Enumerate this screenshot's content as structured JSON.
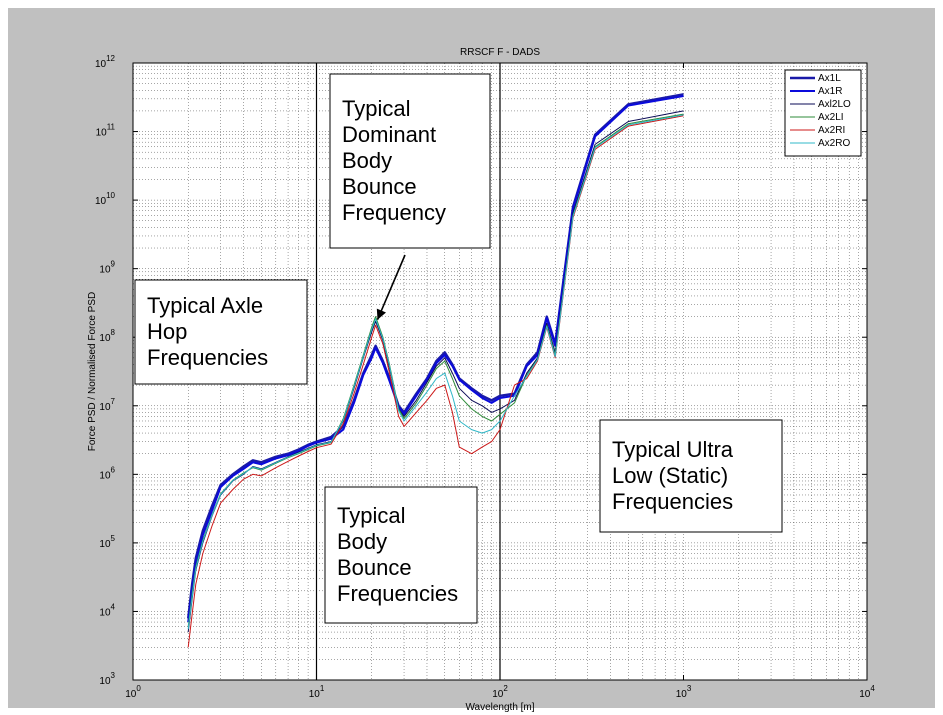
{
  "chart_data": {
    "type": "line",
    "title": "RRSCF F - DADS",
    "xlabel": "Wavelength [m]",
    "ylabel": "Force PSD / Normalised Force PSD",
    "x_scale": "log",
    "y_scale": "log",
    "xlim": [
      1,
      10000
    ],
    "ylim": [
      1000,
      1000000000000
    ],
    "x_tick_labels": [
      {
        "base": "10",
        "exp": "0"
      },
      {
        "base": "10",
        "exp": "1"
      },
      {
        "base": "10",
        "exp": "2"
      },
      {
        "base": "10",
        "exp": "3"
      },
      {
        "base": "10",
        "exp": "4"
      }
    ],
    "y_tick_labels": [
      {
        "base": "10",
        "exp": "3"
      },
      {
        "base": "10",
        "exp": "4"
      },
      {
        "base": "10",
        "exp": "5"
      },
      {
        "base": "10",
        "exp": "6"
      },
      {
        "base": "10",
        "exp": "7"
      },
      {
        "base": "10",
        "exp": "8"
      },
      {
        "base": "10",
        "exp": "9"
      },
      {
        "base": "10",
        "exp": "10"
      },
      {
        "base": "10",
        "exp": "11"
      },
      {
        "base": "10",
        "exp": "12"
      }
    ],
    "grid": true,
    "legend_position": "top-right",
    "series": [
      {
        "name": "Ax1L",
        "color": "#1a1aa8",
        "width": 2.4,
        "points": [
          [
            2,
            8000
          ],
          [
            2.1,
            25000
          ],
          [
            2.2,
            60000
          ],
          [
            2.4,
            150000
          ],
          [
            2.7,
            350000
          ],
          [
            3,
            700000
          ],
          [
            3.5,
            1000000
          ],
          [
            4,
            1300000
          ],
          [
            4.5,
            1600000
          ],
          [
            5,
            1500000
          ],
          [
            6,
            1800000
          ],
          [
            7,
            2000000
          ],
          [
            8,
            2300000
          ],
          [
            9,
            2700000
          ],
          [
            10,
            3000000
          ],
          [
            12,
            3500000
          ],
          [
            14,
            5000000
          ],
          [
            16,
            12000000
          ],
          [
            18,
            30000000
          ],
          [
            20,
            55000000
          ],
          [
            21,
            75000000
          ],
          [
            23,
            45000000
          ],
          [
            25,
            25000000
          ],
          [
            28,
            10000000
          ],
          [
            30,
            8000000
          ],
          [
            35,
            15000000
          ],
          [
            40,
            25000000
          ],
          [
            45,
            45000000
          ],
          [
            50,
            60000000
          ],
          [
            55,
            40000000
          ],
          [
            60,
            25000000
          ],
          [
            70,
            18000000
          ],
          [
            80,
            14000000
          ],
          [
            90,
            12000000
          ],
          [
            100,
            14000000
          ],
          [
            120,
            15000000
          ],
          [
            140,
            40000000
          ],
          [
            160,
            60000000
          ],
          [
            180,
            200000000
          ],
          [
            200,
            80000000
          ],
          [
            250,
            8000000000
          ],
          [
            330,
            90000000000
          ],
          [
            500,
            250000000000
          ],
          [
            1000,
            350000000000
          ]
        ]
      },
      {
        "name": "Ax1R",
        "color": "#0a0adc",
        "width": 2.0,
        "points": [
          [
            2,
            7000
          ],
          [
            2.1,
            20000
          ],
          [
            2.2,
            50000
          ],
          [
            2.4,
            130000
          ],
          [
            2.7,
            300000
          ],
          [
            3,
            650000
          ],
          [
            3.5,
            950000
          ],
          [
            4,
            1200000
          ],
          [
            4.5,
            1500000
          ],
          [
            5,
            1400000
          ],
          [
            6,
            1700000
          ],
          [
            7,
            1900000
          ],
          [
            8,
            2200000
          ],
          [
            9,
            2600000
          ],
          [
            10,
            2900000
          ],
          [
            12,
            3300000
          ],
          [
            14,
            4500000
          ],
          [
            16,
            11000000
          ],
          [
            18,
            28000000
          ],
          [
            20,
            50000000
          ],
          [
            21,
            70000000
          ],
          [
            23,
            42000000
          ],
          [
            25,
            23000000
          ],
          [
            28,
            9500000
          ],
          [
            30,
            7500000
          ],
          [
            35,
            14000000
          ],
          [
            40,
            24000000
          ],
          [
            45,
            42000000
          ],
          [
            50,
            55000000
          ],
          [
            55,
            38000000
          ],
          [
            60,
            24000000
          ],
          [
            70,
            17000000
          ],
          [
            80,
            13000000
          ],
          [
            90,
            11000000
          ],
          [
            100,
            13000000
          ],
          [
            120,
            14000000
          ],
          [
            140,
            38000000
          ],
          [
            160,
            55000000
          ],
          [
            180,
            190000000
          ],
          [
            200,
            75000000
          ],
          [
            250,
            7500000000
          ],
          [
            330,
            85000000000
          ],
          [
            500,
            240000000000
          ],
          [
            1000,
            330000000000
          ]
        ]
      },
      {
        "name": "Axl2LO",
        "color": "#0a0a55",
        "width": 1.0,
        "points": [
          [
            2,
            5000
          ],
          [
            2.1,
            15000
          ],
          [
            2.2,
            40000
          ],
          [
            2.4,
            100000
          ],
          [
            2.7,
            250000
          ],
          [
            3,
            500000
          ],
          [
            3.5,
            800000
          ],
          [
            4,
            1000000
          ],
          [
            4.5,
            1300000
          ],
          [
            5,
            1200000
          ],
          [
            6,
            1500000
          ],
          [
            7,
            1800000
          ],
          [
            8,
            2100000
          ],
          [
            9,
            2400000
          ],
          [
            10,
            2700000
          ],
          [
            12,
            3000000
          ],
          [
            14,
            6000000
          ],
          [
            16,
            18000000
          ],
          [
            18,
            50000000
          ],
          [
            20,
            120000000
          ],
          [
            21,
            170000000
          ],
          [
            23,
            90000000
          ],
          [
            25,
            35000000
          ],
          [
            28,
            9000000
          ],
          [
            30,
            7000000
          ],
          [
            35,
            12000000
          ],
          [
            40,
            22000000
          ],
          [
            45,
            38000000
          ],
          [
            50,
            50000000
          ],
          [
            55,
            30000000
          ],
          [
            60,
            18000000
          ],
          [
            70,
            12000000
          ],
          [
            80,
            10000000
          ],
          [
            90,
            8000000
          ],
          [
            100,
            9000000
          ],
          [
            120,
            12000000
          ],
          [
            140,
            30000000
          ],
          [
            160,
            50000000
          ],
          [
            180,
            160000000
          ],
          [
            200,
            60000000
          ],
          [
            250,
            6500000000
          ],
          [
            330,
            65000000000
          ],
          [
            500,
            140000000000
          ],
          [
            1000,
            200000000000
          ]
        ]
      },
      {
        "name": "Ax2LI",
        "color": "#2e8b3a",
        "width": 1.0,
        "points": [
          [
            2,
            6000
          ],
          [
            2.1,
            18000
          ],
          [
            2.2,
            45000
          ],
          [
            2.4,
            110000
          ],
          [
            2.7,
            260000
          ],
          [
            3,
            520000
          ],
          [
            3.5,
            820000
          ],
          [
            4,
            1050000
          ],
          [
            4.5,
            1250000
          ],
          [
            5,
            1150000
          ],
          [
            6,
            1450000
          ],
          [
            7,
            1750000
          ],
          [
            8,
            2000000
          ],
          [
            9,
            2300000
          ],
          [
            10,
            2600000
          ],
          [
            12,
            2900000
          ],
          [
            14,
            6500000
          ],
          [
            16,
            20000000
          ],
          [
            18,
            55000000
          ],
          [
            20,
            140000000
          ],
          [
            21,
            200000000
          ],
          [
            23,
            100000000
          ],
          [
            25,
            40000000
          ],
          [
            28,
            9000000
          ],
          [
            30,
            6500000
          ],
          [
            35,
            11000000
          ],
          [
            40,
            20000000
          ],
          [
            45,
            35000000
          ],
          [
            50,
            45000000
          ],
          [
            55,
            25000000
          ],
          [
            60,
            14000000
          ],
          [
            70,
            9000000
          ],
          [
            80,
            7000000
          ],
          [
            90,
            6000000
          ],
          [
            100,
            7500000
          ],
          [
            120,
            11000000
          ],
          [
            140,
            28000000
          ],
          [
            160,
            48000000
          ],
          [
            180,
            150000000
          ],
          [
            200,
            55000000
          ],
          [
            250,
            6000000000
          ],
          [
            330,
            60000000000
          ],
          [
            500,
            130000000000
          ],
          [
            1000,
            180000000000
          ]
        ]
      },
      {
        "name": "Ax2RI",
        "color": "#cc1818",
        "width": 1.0,
        "points": [
          [
            2,
            3000
          ],
          [
            2.1,
            9000
          ],
          [
            2.2,
            25000
          ],
          [
            2.4,
            70000
          ],
          [
            2.7,
            180000
          ],
          [
            3,
            380000
          ],
          [
            3.5,
            600000
          ],
          [
            4,
            850000
          ],
          [
            4.5,
            1000000
          ],
          [
            5,
            950000
          ],
          [
            6,
            1250000
          ],
          [
            7,
            1550000
          ],
          [
            8,
            1850000
          ],
          [
            9,
            2150000
          ],
          [
            10,
            2450000
          ],
          [
            12,
            2750000
          ],
          [
            14,
            5500000
          ],
          [
            16,
            15000000
          ],
          [
            18,
            40000000
          ],
          [
            20,
            100000000
          ],
          [
            21,
            150000000
          ],
          [
            23,
            80000000
          ],
          [
            25,
            30000000
          ],
          [
            28,
            7000000
          ],
          [
            30,
            5000000
          ],
          [
            35,
            8000000
          ],
          [
            40,
            12000000
          ],
          [
            45,
            18000000
          ],
          [
            50,
            20000000
          ],
          [
            55,
            8000000
          ],
          [
            60,
            2500000
          ],
          [
            70,
            2000000
          ],
          [
            80,
            2500000
          ],
          [
            90,
            3000000
          ],
          [
            100,
            4500000
          ],
          [
            120,
            20000000
          ],
          [
            140,
            25000000
          ],
          [
            160,
            45000000
          ],
          [
            180,
            140000000
          ],
          [
            200,
            50000000
          ],
          [
            250,
            5500000000
          ],
          [
            330,
            55000000000
          ],
          [
            500,
            120000000000
          ],
          [
            1000,
            170000000000
          ]
        ]
      },
      {
        "name": "Ax2RO",
        "color": "#30b8c8",
        "width": 1.0,
        "points": [
          [
            2,
            5500
          ],
          [
            2.1,
            16000
          ],
          [
            2.2,
            42000
          ],
          [
            2.4,
            105000
          ],
          [
            2.7,
            255000
          ],
          [
            3,
            510000
          ],
          [
            3.5,
            810000
          ],
          [
            4,
            1020000
          ],
          [
            4.5,
            1280000
          ],
          [
            5,
            1180000
          ],
          [
            6,
            1480000
          ],
          [
            7,
            1780000
          ],
          [
            8,
            2050000
          ],
          [
            9,
            2350000
          ],
          [
            10,
            2650000
          ],
          [
            12,
            2950000
          ],
          [
            14,
            6200000
          ],
          [
            16,
            19000000
          ],
          [
            18,
            52000000
          ],
          [
            20,
            130000000
          ],
          [
            21,
            185000000
          ],
          [
            23,
            95000000
          ],
          [
            25,
            38000000
          ],
          [
            28,
            8500000
          ],
          [
            30,
            6000000
          ],
          [
            35,
            10000000
          ],
          [
            40,
            16000000
          ],
          [
            45,
            25000000
          ],
          [
            50,
            30000000
          ],
          [
            55,
            14000000
          ],
          [
            60,
            6000000
          ],
          [
            70,
            4500000
          ],
          [
            80,
            4000000
          ],
          [
            90,
            4500000
          ],
          [
            100,
            6000000
          ],
          [
            120,
            14000000
          ],
          [
            140,
            27000000
          ],
          [
            160,
            47000000
          ],
          [
            180,
            145000000
          ],
          [
            200,
            52000000
          ],
          [
            250,
            5800000000
          ],
          [
            330,
            58000000000
          ],
          [
            500,
            125000000000
          ],
          [
            1000,
            175000000000
          ]
        ]
      }
    ],
    "annotations": [
      {
        "id": "dominant",
        "lines": [
          "Typical",
          "Dominant",
          "Body",
          "Bounce",
          "Frequency"
        ]
      },
      {
        "id": "axle-hop",
        "lines": [
          "Typical Axle",
          "Hop",
          "Frequencies"
        ]
      },
      {
        "id": "body-bounce",
        "lines": [
          "Typical",
          "Body",
          "Bounce",
          "Frequencies"
        ]
      },
      {
        "id": "ultra-low",
        "lines": [
          "Typical Ultra",
          "Low (Static)",
          "Frequencies"
        ]
      }
    ],
    "vertical_markers": [
      10,
      100
    ],
    "arrow": {
      "to": [
        21.5,
        180000000
      ]
    }
  }
}
